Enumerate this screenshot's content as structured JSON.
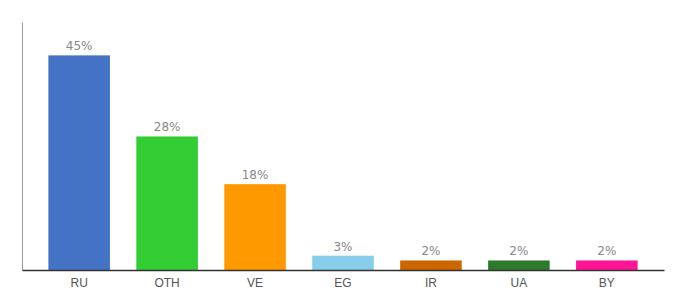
{
  "chart_data": {
    "type": "bar",
    "categories": [
      "RU",
      "OTH",
      "VE",
      "EG",
      "IR",
      "UA",
      "BY"
    ],
    "values": [
      45,
      28,
      18,
      3,
      2,
      2,
      2
    ],
    "value_labels": [
      "45%",
      "28%",
      "18%",
      "3%",
      "2%",
      "2%",
      "2%"
    ],
    "colors": [
      "#4472c4",
      "#33cc33",
      "#ff9900",
      "#87ceeb",
      "#cc6600",
      "#2d7a2d",
      "#ff1493"
    ],
    "ylim": [
      0,
      52
    ],
    "data_labels": true,
    "tick_labels": "x"
  }
}
